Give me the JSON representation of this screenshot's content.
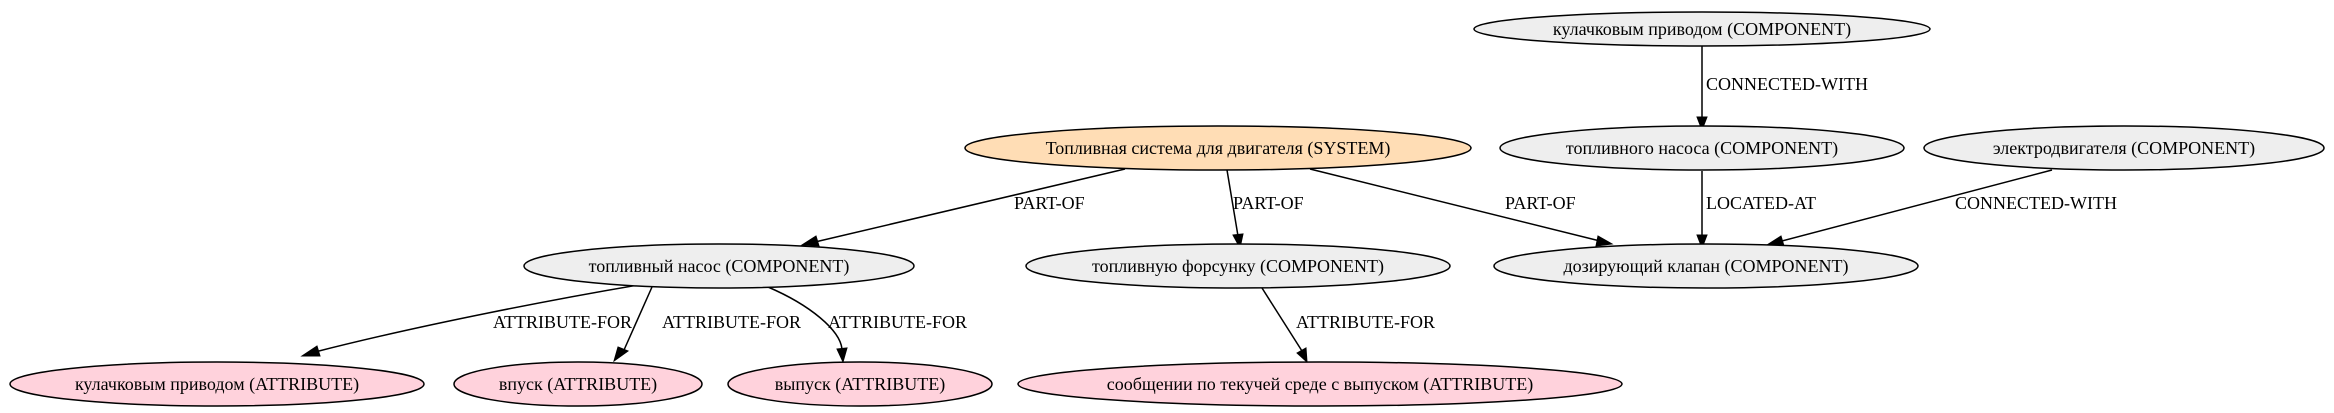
{
  "colors": {
    "system": "#ffddb5",
    "component": "#eeeeee",
    "attribute": "#ffd2dc"
  },
  "nodes": {
    "cam_drive_component": "кулачковым приводом (COMPONENT)",
    "fuel_pump_gen": "топливного насоса (COMPONENT)",
    "electric_motor": "электродвигателя (COMPONENT)",
    "fuel_system": "Топливная система для двигателя (SYSTEM)",
    "fuel_pump": "топливный насос (COMPONENT)",
    "fuel_injector": "топливную форсунку (COMPONENT)",
    "metering_valve": "дозирующий клапан (COMPONENT)",
    "cam_drive_attribute": "кулачковым приводом (ATTRIBUTE)",
    "intake": "впуск (ATTRIBUTE)",
    "exhaust": "выпуск (ATTRIBUTE)",
    "flow_message": "сообщении по текучей среде с выпуском (ATTRIBUTE)"
  },
  "edges": {
    "cam_to_pumpgen": "CONNECTED-WITH",
    "pumpgen_to_valve": "LOCATED-AT",
    "motor_to_valve": "CONNECTED-WITH",
    "system_to_pump": "PART-OF",
    "system_to_injector": "PART-OF",
    "system_to_valve": "PART-OF",
    "pump_to_cam_attr": "ATTRIBUTE-FOR",
    "pump_to_intake": "ATTRIBUTE-FOR",
    "pump_to_exhaust": "ATTRIBUTE-FOR",
    "injector_to_flow": "ATTRIBUTE-FOR"
  }
}
